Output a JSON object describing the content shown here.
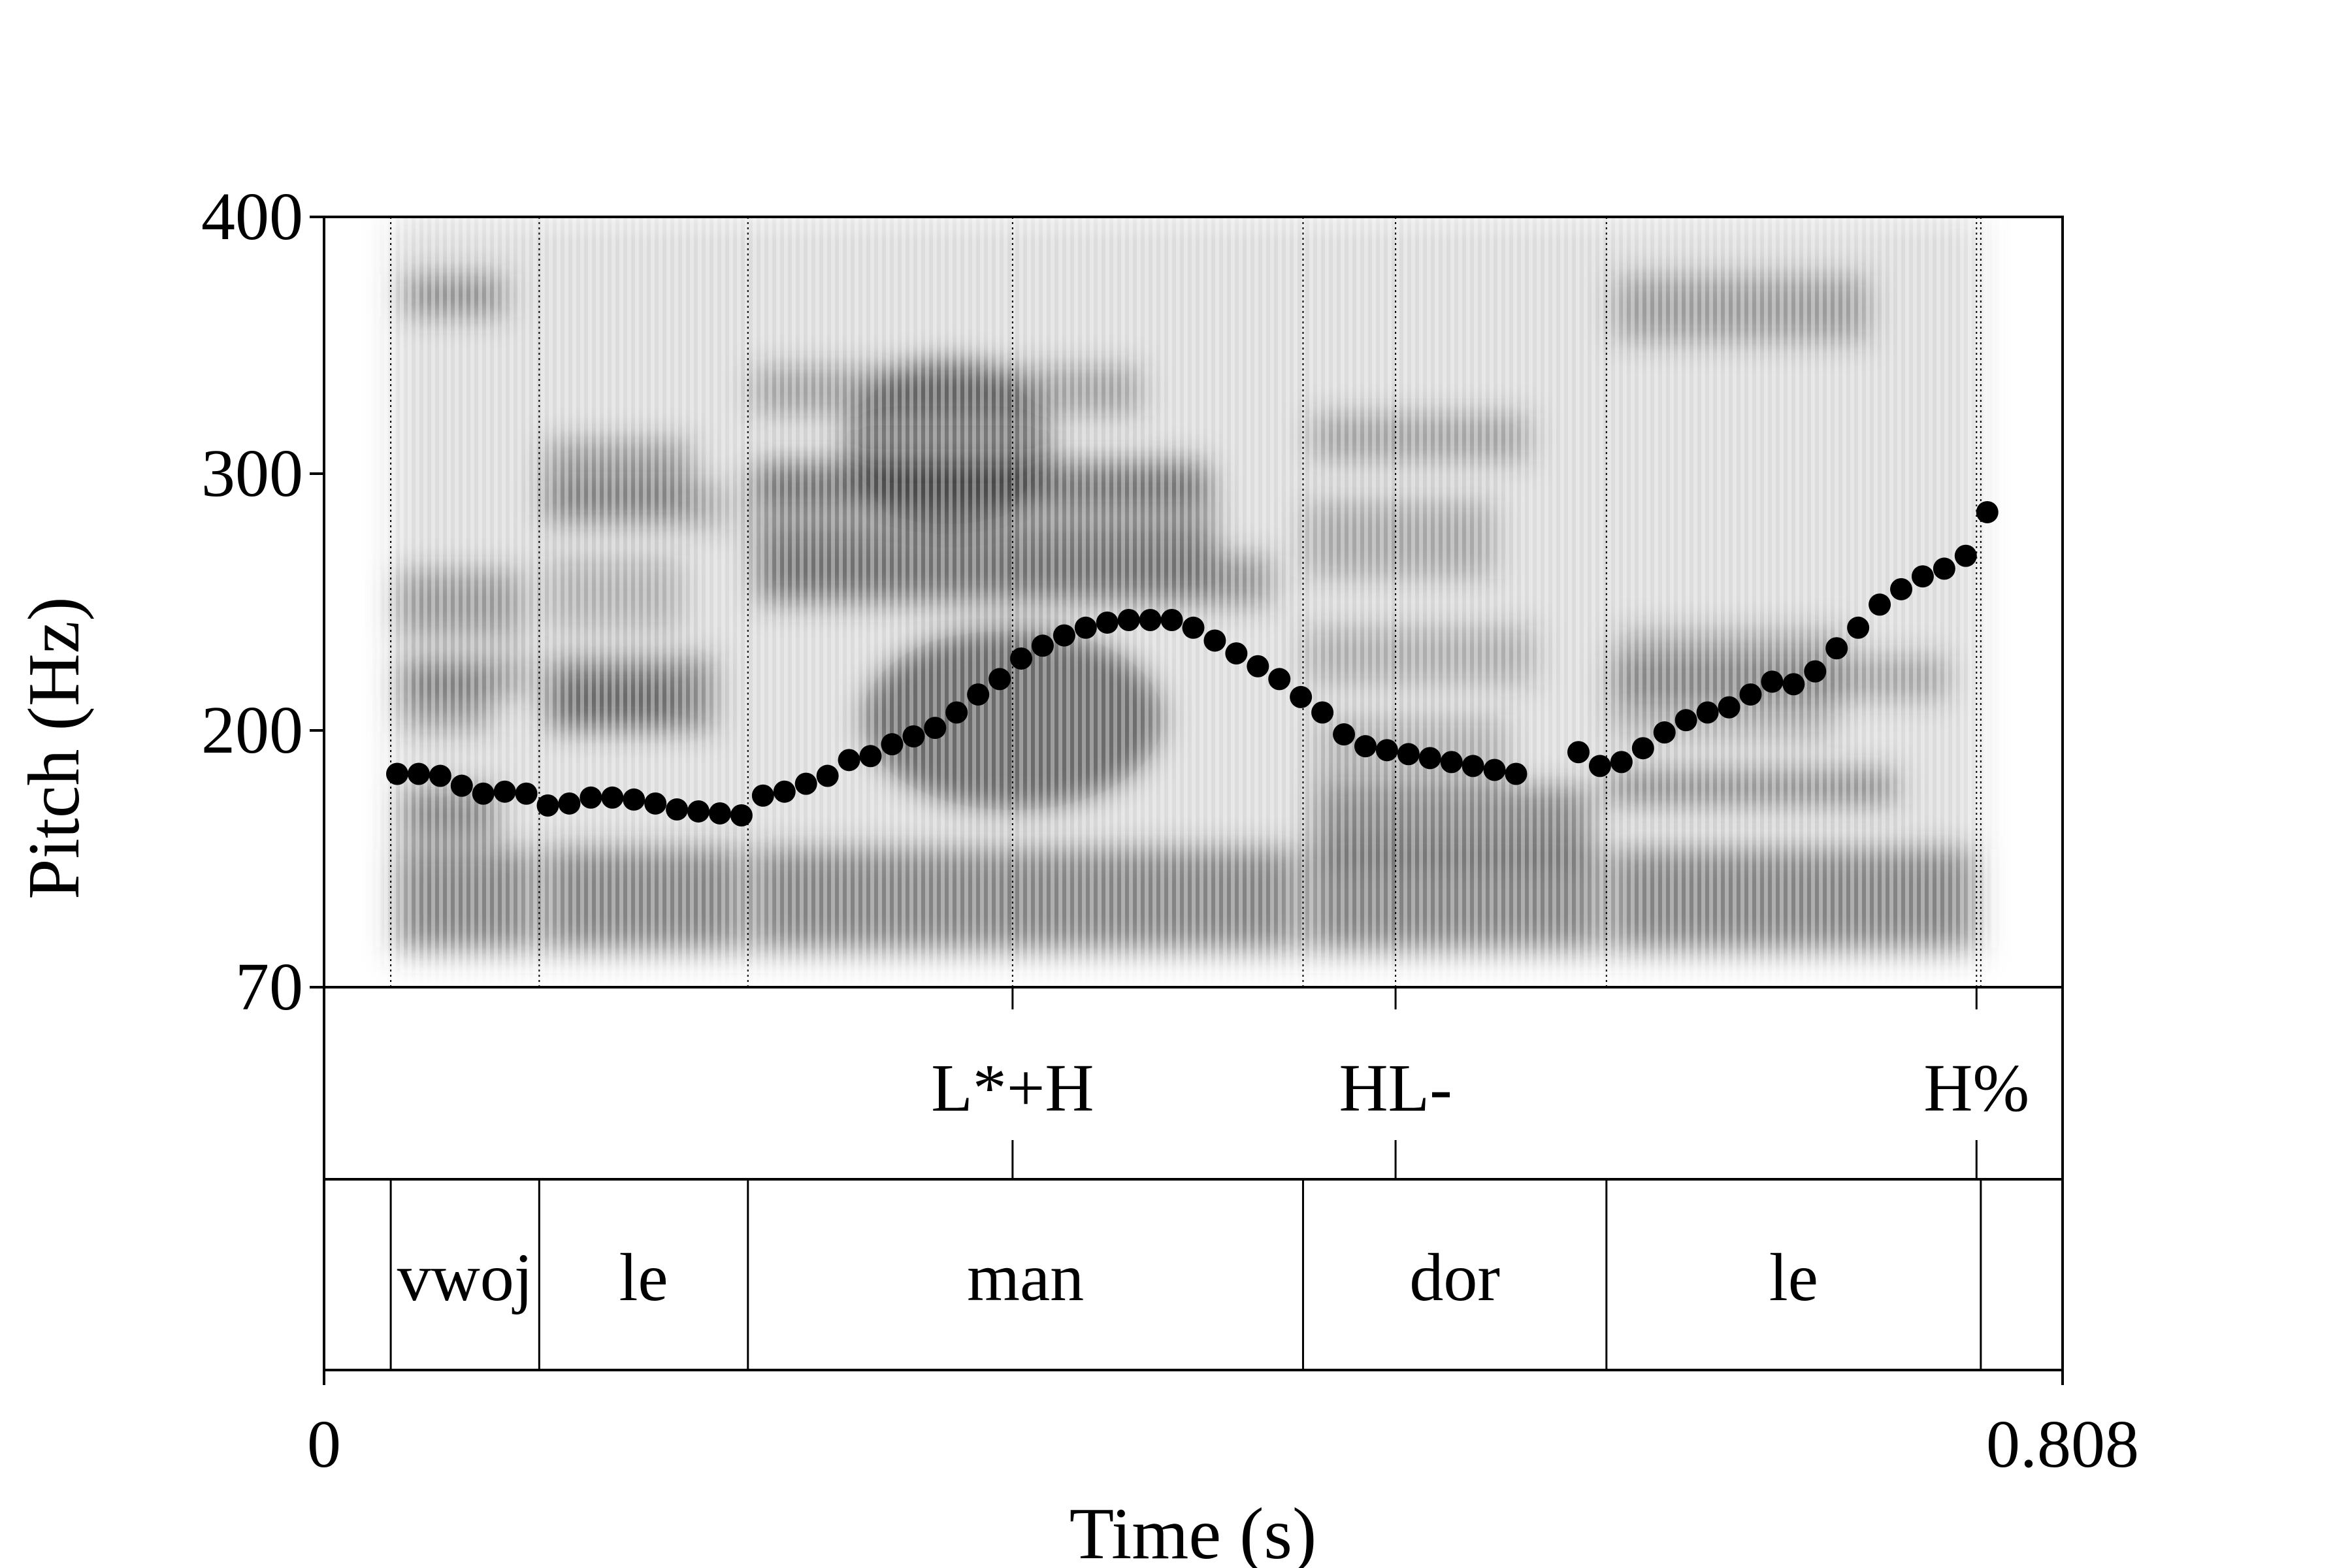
{
  "chart_data": {
    "type": "scatter",
    "title": "",
    "xlabel": "Time (s)",
    "ylabel": "Pitch (Hz)",
    "xlim": [
      0,
      0.808
    ],
    "ylim": [
      70,
      400
    ],
    "x_ticks": [
      "0",
      "0.808"
    ],
    "y_ticks": [
      "400",
      "300",
      "200",
      "70"
    ],
    "y_tick_values": [
      400,
      300,
      200,
      70
    ],
    "colors": {
      "points": "#000000",
      "spectrogram": "#3a3a3a",
      "frame": "#000000"
    },
    "spectrogram": "grayscale spectrogram behind pitch track",
    "tones": [
      {
        "label": "L*+H",
        "t": 0.32
      },
      {
        "label": "HL-",
        "t": 0.498
      },
      {
        "label": "H%",
        "t": 0.768
      }
    ],
    "words": [
      {
        "label": "vwoj",
        "start": 0.031,
        "end": 0.1
      },
      {
        "label": "le",
        "start": 0.1,
        "end": 0.197
      },
      {
        "label": "man",
        "start": 0.197,
        "end": 0.455
      },
      {
        "label": "dor",
        "start": 0.455,
        "end": 0.596
      },
      {
        "label": "le",
        "start": 0.596,
        "end": 0.77
      }
    ],
    "series": [
      {
        "points": [
          [
            0.034,
            178
          ],
          [
            0.044,
            178
          ],
          [
            0.054,
            177
          ],
          [
            0.064,
            172
          ],
          [
            0.074,
            168
          ],
          [
            0.084,
            169
          ],
          [
            0.094,
            168
          ],
          [
            0.104,
            162
          ],
          [
            0.114,
            163
          ],
          [
            0.124,
            166
          ],
          [
            0.134,
            166
          ],
          [
            0.144,
            165
          ],
          [
            0.154,
            163
          ],
          [
            0.164,
            160
          ],
          [
            0.174,
            159
          ],
          [
            0.184,
            158
          ],
          [
            0.194,
            157
          ],
          [
            0.204,
            167
          ],
          [
            0.214,
            169
          ],
          [
            0.224,
            173
          ],
          [
            0.234,
            177
          ],
          [
            0.244,
            185
          ],
          [
            0.254,
            187
          ],
          [
            0.264,
            193
          ],
          [
            0.274,
            197
          ],
          [
            0.284,
            201
          ],
          [
            0.294,
            207
          ],
          [
            0.304,
            214
          ],
          [
            0.314,
            220
          ],
          [
            0.324,
            228
          ],
          [
            0.334,
            233
          ],
          [
            0.344,
            237
          ],
          [
            0.354,
            240
          ],
          [
            0.364,
            242
          ],
          [
            0.374,
            243
          ],
          [
            0.384,
            243
          ],
          [
            0.394,
            243
          ],
          [
            0.404,
            240
          ],
          [
            0.414,
            235
          ],
          [
            0.424,
            230
          ],
          [
            0.434,
            225
          ],
          [
            0.444,
            220
          ],
          [
            0.454,
            213
          ],
          [
            0.464,
            207
          ],
          [
            0.474,
            198
          ],
          [
            0.484,
            192
          ],
          [
            0.494,
            190
          ],
          [
            0.504,
            188
          ],
          [
            0.514,
            186
          ],
          [
            0.524,
            184
          ],
          [
            0.534,
            182
          ],
          [
            0.544,
            180
          ],
          [
            0.554,
            178
          ],
          [
            0.583,
            189
          ],
          [
            0.593,
            182
          ],
          [
            0.603,
            184
          ],
          [
            0.613,
            191
          ],
          [
            0.623,
            199
          ],
          [
            0.633,
            204
          ],
          [
            0.643,
            207
          ],
          [
            0.653,
            209
          ],
          [
            0.663,
            214
          ],
          [
            0.673,
            219
          ],
          [
            0.683,
            218
          ],
          [
            0.693,
            223
          ],
          [
            0.703,
            232
          ],
          [
            0.713,
            240
          ],
          [
            0.723,
            249
          ],
          [
            0.733,
            255
          ],
          [
            0.743,
            260
          ],
          [
            0.753,
            263
          ],
          [
            0.763,
            268
          ],
          [
            0.773,
            285
          ]
        ]
      }
    ]
  }
}
